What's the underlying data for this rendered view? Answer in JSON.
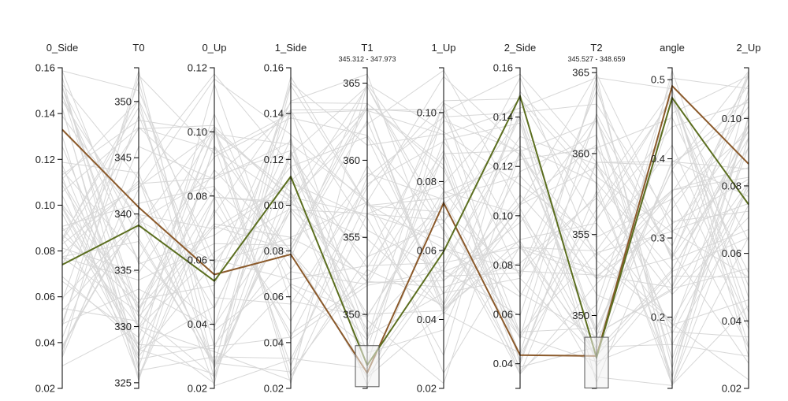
{
  "chart_data": {
    "type": "parallel_coordinates",
    "axes": [
      {
        "name": "0_Side",
        "ticks": [
          "0.02",
          "0.04",
          "0.06",
          "0.08",
          "0.10",
          "0.12",
          "0.14",
          "0.16"
        ],
        "range": [
          0.02,
          0.16
        ]
      },
      {
        "name": "T0",
        "ticks": [
          "325",
          "330",
          "335",
          "340",
          "345",
          "350"
        ],
        "range": [
          324.5,
          353.0
        ]
      },
      {
        "name": "0_Up",
        "ticks": [
          "0.02",
          "0.04",
          "0.06",
          "0.08",
          "0.10",
          "0.12"
        ],
        "range": [
          0.02,
          0.12
        ]
      },
      {
        "name": "1_Side",
        "ticks": [
          "0.02",
          "0.04",
          "0.06",
          "0.08",
          "0.10",
          "0.12",
          "0.14",
          "0.16"
        ],
        "range": [
          0.02,
          0.16
        ]
      },
      {
        "name": "T1",
        "ticks": [
          "350",
          "355",
          "360",
          "365"
        ],
        "range": [
          345.2,
          366.0
        ],
        "brush": [
          345.312,
          347.973
        ],
        "brush_label": "345.312 - 347.973"
      },
      {
        "name": "1_Up",
        "ticks": [
          "0.02",
          "0.04",
          "0.06",
          "0.08",
          "0.10"
        ],
        "range": [
          0.02,
          0.113
        ]
      },
      {
        "name": "2_Side",
        "ticks": [
          "0.04",
          "0.06",
          "0.08",
          "0.10",
          "0.12",
          "0.14",
          "0.16"
        ],
        "range": [
          0.03,
          0.16
        ]
      },
      {
        "name": "T2",
        "ticks": [
          "350",
          "355",
          "360",
          "365"
        ],
        "range": [
          345.5,
          365.3
        ],
        "brush": [
          345.527,
          348.659
        ],
        "brush_label": "345.527 - 348.659"
      },
      {
        "name": "angle",
        "ticks": [
          "0.2",
          "0.3",
          "0.4",
          "0.5"
        ],
        "range": [
          0.11,
          0.515
        ]
      },
      {
        "name": "2_Up",
        "ticks": [
          "0.02",
          "0.04",
          "0.06",
          "0.08",
          "0.10"
        ],
        "range": [
          0.02,
          0.115
        ]
      }
    ],
    "highlighted_series": [
      {
        "color": "#8B5A2B",
        "values": [
          0.133,
          340.6,
          0.0555,
          0.0785,
          346.2,
          0.0738,
          0.0435,
          347.5,
          0.492,
          0.0865
        ]
      },
      {
        "color": "#5B6E1F",
        "values": [
          0.074,
          339.0,
          0.0535,
          0.1125,
          346.7,
          0.0597,
          0.1485,
          347.4,
          0.477,
          0.0745
        ]
      }
    ],
    "background_series_count": 60,
    "background_color": "#d7d7d7"
  }
}
